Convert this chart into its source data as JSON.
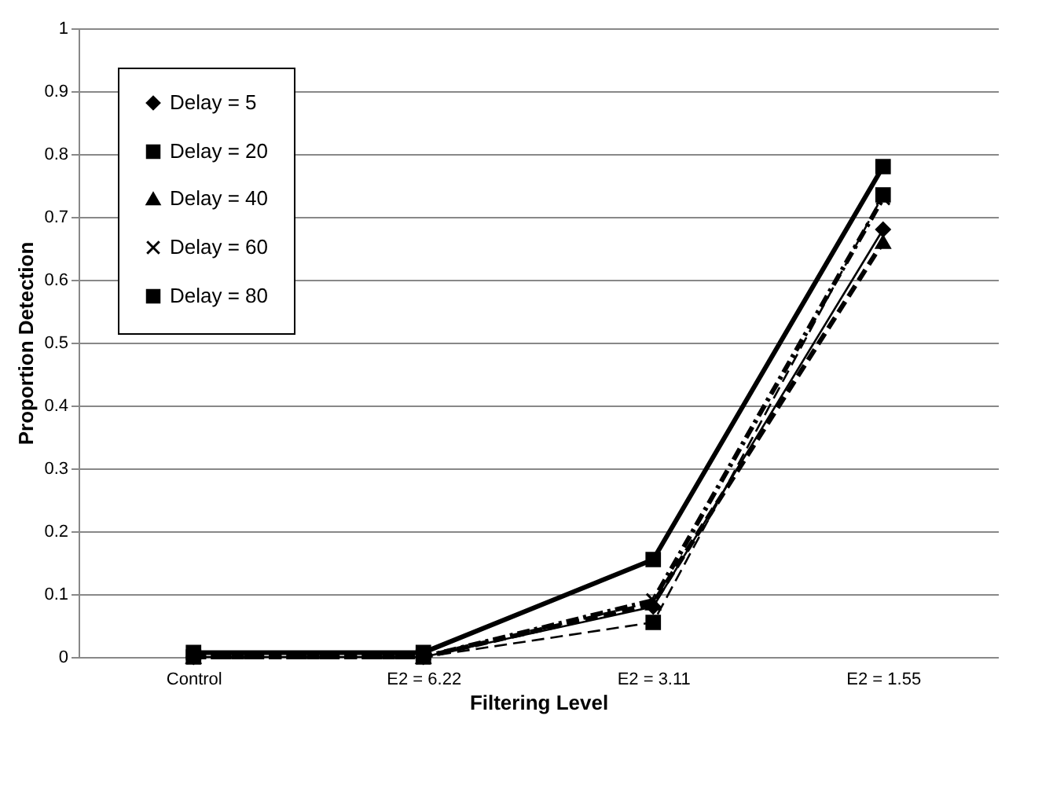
{
  "chart_data": {
    "type": "line",
    "xlabel": "Filtering Level",
    "ylabel": "Proportion Detection",
    "categories": [
      "Control",
      "E2 = 6.22",
      "E2 = 3.11",
      "E2 = 1.55"
    ],
    "series": [
      {
        "name": "Delay = 5",
        "color": "#000000",
        "marker": "diamond",
        "line_style": "solid",
        "values": [
          0,
          0,
          0.08,
          0.68
        ]
      },
      {
        "name": "Delay = 20",
        "color": "#000000",
        "marker": "square",
        "line_style": "dashed",
        "values": [
          0,
          0,
          0.055,
          0.735
        ]
      },
      {
        "name": "Delay = 40",
        "color": "#000000",
        "marker": "triangle",
        "line_style": "dashed",
        "values": [
          0,
          0,
          0.085,
          0.66
        ]
      },
      {
        "name": "Delay = 60",
        "color": "#000000",
        "marker": "cross",
        "line_style": "dotted",
        "values": [
          0,
          0,
          0.09,
          0.73
        ]
      },
      {
        "name": "Delay = 80",
        "color": "#000000",
        "marker": "square",
        "line_style": "solid",
        "values": [
          0.007,
          0.007,
          0.155,
          0.78
        ]
      }
    ],
    "ylim": [
      0,
      1
    ],
    "yticks": [
      0,
      0.1,
      0.2,
      0.3,
      0.4,
      0.5,
      0.6,
      0.7,
      0.8,
      0.9,
      1
    ],
    "grid": "y",
    "legend": "top left"
  }
}
